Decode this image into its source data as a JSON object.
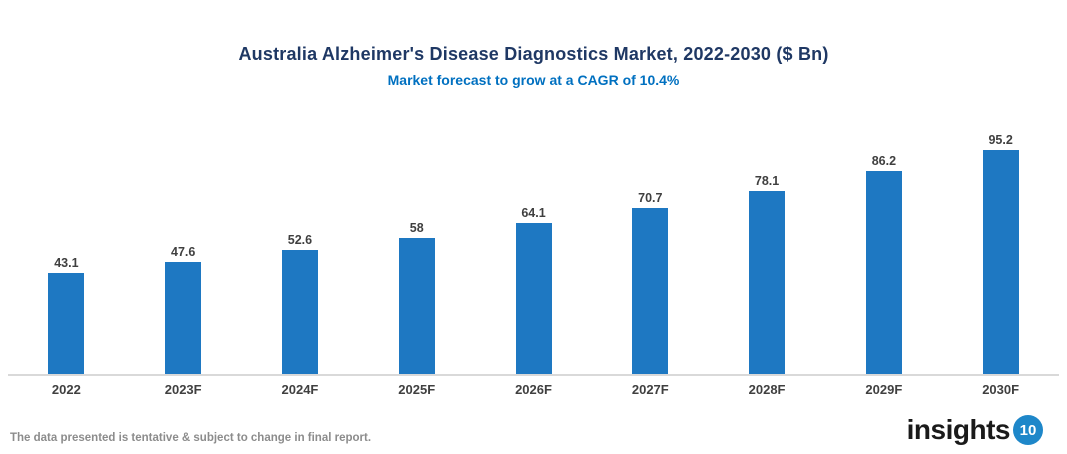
{
  "chart_data": {
    "type": "bar",
    "title": "Australia Alzheimer's Disease Diagnostics Market, 2022-2030 ($ Bn)",
    "subtitle": "Market forecast to grow at a CAGR of 10.4%",
    "categories": [
      "2022",
      "2023F",
      "2024F",
      "2025F",
      "2026F",
      "2027F",
      "2028F",
      "2029F",
      "2030F"
    ],
    "values": [
      43.1,
      47.6,
      52.6,
      58,
      64.1,
      70.7,
      78.1,
      86.2,
      95.2
    ],
    "xlabel": "",
    "ylabel": "",
    "ylim": [
      0,
      100
    ],
    "grid": false,
    "legend": false,
    "cagr_percent": 10.4,
    "colors": {
      "bar": "#1E78C2",
      "title": "#1F3864",
      "subtitle": "#0070C0",
      "data_label": "#3F3F3F",
      "axis_label": "#404040",
      "axis_line": "#D9D9D9"
    }
  },
  "footer": {
    "disclaimer": "The data presented is tentative & subject to change in final report.",
    "logo_text": "insights",
    "logo_number": "10"
  }
}
